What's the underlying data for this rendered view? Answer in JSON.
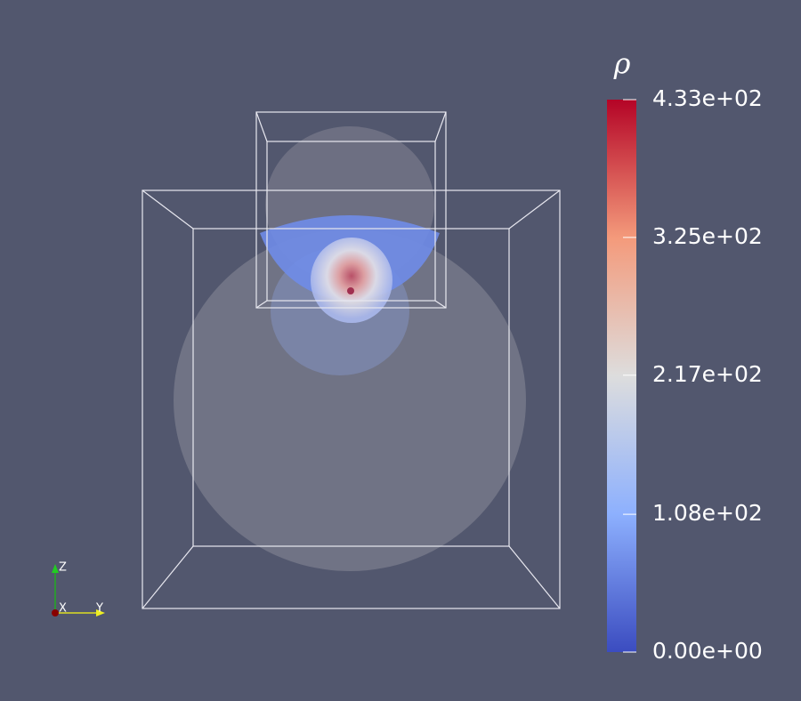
{
  "colorbar": {
    "title": "ρ",
    "range": [
      0,
      433
    ],
    "ticks": [
      {
        "value": 433,
        "label": "4.33e+02"
      },
      {
        "value": 325,
        "label": "3.25e+02"
      },
      {
        "value": 217,
        "label": "2.17e+02"
      },
      {
        "value": 108,
        "label": "1.08e+02"
      },
      {
        "value": 0,
        "label": "0.00e+00"
      }
    ]
  },
  "orientation_axes": {
    "x": "X",
    "y": "Y",
    "z": "Z"
  }
}
